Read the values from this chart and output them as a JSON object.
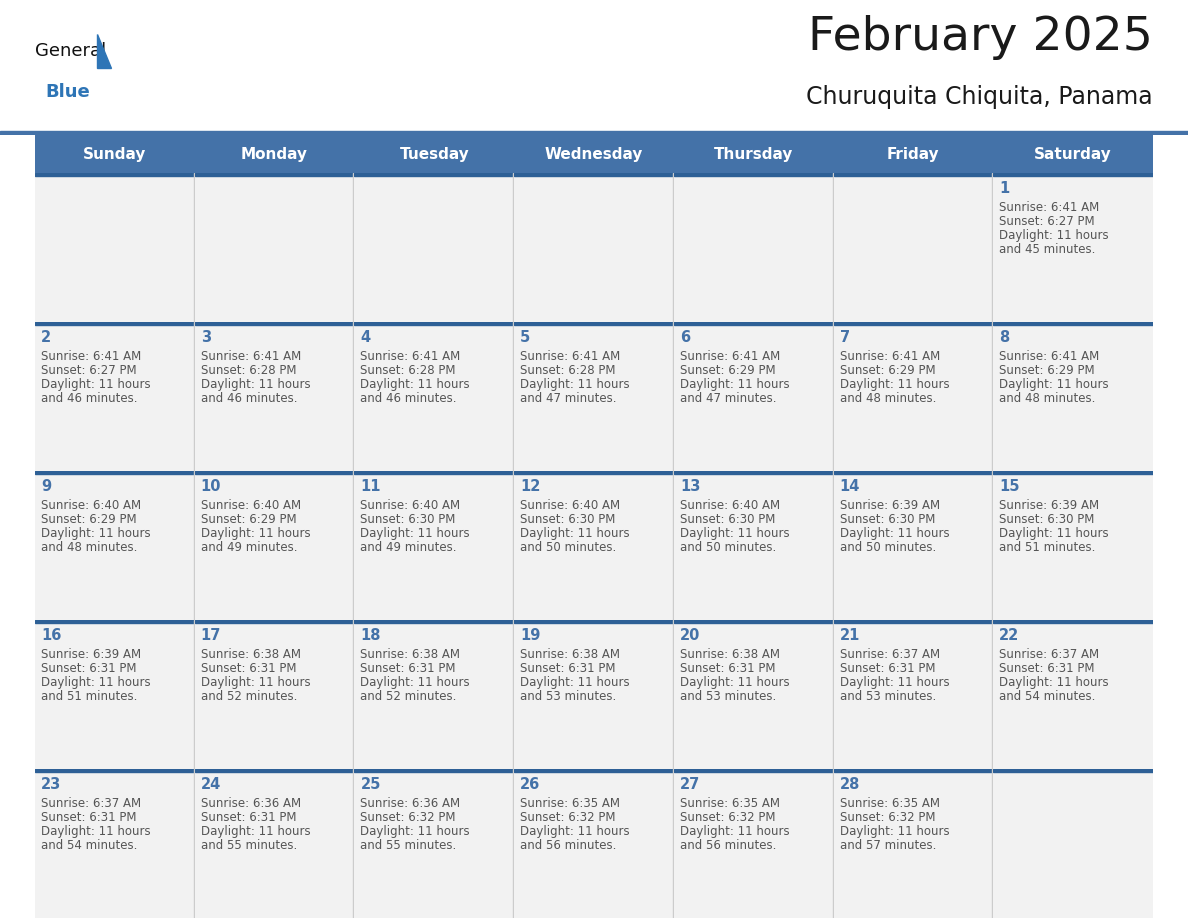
{
  "title": "February 2025",
  "subtitle": "Churuquita Chiquita, Panama",
  "header_bg": "#4472a8",
  "header_text_color": "#ffffff",
  "cell_bg": "#f2f2f2",
  "day_number_color": "#4472a8",
  "info_text_color": "#555555",
  "border_color": "#2e6096",
  "days_of_week": [
    "Sunday",
    "Monday",
    "Tuesday",
    "Wednesday",
    "Thursday",
    "Friday",
    "Saturday"
  ],
  "weeks": [
    [
      {
        "day": null,
        "sunrise": null,
        "sunset": null,
        "daylight": null
      },
      {
        "day": null,
        "sunrise": null,
        "sunset": null,
        "daylight": null
      },
      {
        "day": null,
        "sunrise": null,
        "sunset": null,
        "daylight": null
      },
      {
        "day": null,
        "sunrise": null,
        "sunset": null,
        "daylight": null
      },
      {
        "day": null,
        "sunrise": null,
        "sunset": null,
        "daylight": null
      },
      {
        "day": null,
        "sunrise": null,
        "sunset": null,
        "daylight": null
      },
      {
        "day": 1,
        "sunrise": "6:41 AM",
        "sunset": "6:27 PM",
        "daylight": "11 hours and 45 minutes."
      }
    ],
    [
      {
        "day": 2,
        "sunrise": "6:41 AM",
        "sunset": "6:27 PM",
        "daylight": "11 hours and 46 minutes."
      },
      {
        "day": 3,
        "sunrise": "6:41 AM",
        "sunset": "6:28 PM",
        "daylight": "11 hours and 46 minutes."
      },
      {
        "day": 4,
        "sunrise": "6:41 AM",
        "sunset": "6:28 PM",
        "daylight": "11 hours and 46 minutes."
      },
      {
        "day": 5,
        "sunrise": "6:41 AM",
        "sunset": "6:28 PM",
        "daylight": "11 hours and 47 minutes."
      },
      {
        "day": 6,
        "sunrise": "6:41 AM",
        "sunset": "6:29 PM",
        "daylight": "11 hours and 47 minutes."
      },
      {
        "day": 7,
        "sunrise": "6:41 AM",
        "sunset": "6:29 PM",
        "daylight": "11 hours and 48 minutes."
      },
      {
        "day": 8,
        "sunrise": "6:41 AM",
        "sunset": "6:29 PM",
        "daylight": "11 hours and 48 minutes."
      }
    ],
    [
      {
        "day": 9,
        "sunrise": "6:40 AM",
        "sunset": "6:29 PM",
        "daylight": "11 hours and 48 minutes."
      },
      {
        "day": 10,
        "sunrise": "6:40 AM",
        "sunset": "6:29 PM",
        "daylight": "11 hours and 49 minutes."
      },
      {
        "day": 11,
        "sunrise": "6:40 AM",
        "sunset": "6:30 PM",
        "daylight": "11 hours and 49 minutes."
      },
      {
        "day": 12,
        "sunrise": "6:40 AM",
        "sunset": "6:30 PM",
        "daylight": "11 hours and 50 minutes."
      },
      {
        "day": 13,
        "sunrise": "6:40 AM",
        "sunset": "6:30 PM",
        "daylight": "11 hours and 50 minutes."
      },
      {
        "day": 14,
        "sunrise": "6:39 AM",
        "sunset": "6:30 PM",
        "daylight": "11 hours and 50 minutes."
      },
      {
        "day": 15,
        "sunrise": "6:39 AM",
        "sunset": "6:30 PM",
        "daylight": "11 hours and 51 minutes."
      }
    ],
    [
      {
        "day": 16,
        "sunrise": "6:39 AM",
        "sunset": "6:31 PM",
        "daylight": "11 hours and 51 minutes."
      },
      {
        "day": 17,
        "sunrise": "6:38 AM",
        "sunset": "6:31 PM",
        "daylight": "11 hours and 52 minutes."
      },
      {
        "day": 18,
        "sunrise": "6:38 AM",
        "sunset": "6:31 PM",
        "daylight": "11 hours and 52 minutes."
      },
      {
        "day": 19,
        "sunrise": "6:38 AM",
        "sunset": "6:31 PM",
        "daylight": "11 hours and 53 minutes."
      },
      {
        "day": 20,
        "sunrise": "6:38 AM",
        "sunset": "6:31 PM",
        "daylight": "11 hours and 53 minutes."
      },
      {
        "day": 21,
        "sunrise": "6:37 AM",
        "sunset": "6:31 PM",
        "daylight": "11 hours and 53 minutes."
      },
      {
        "day": 22,
        "sunrise": "6:37 AM",
        "sunset": "6:31 PM",
        "daylight": "11 hours and 54 minutes."
      }
    ],
    [
      {
        "day": 23,
        "sunrise": "6:37 AM",
        "sunset": "6:31 PM",
        "daylight": "11 hours and 54 minutes."
      },
      {
        "day": 24,
        "sunrise": "6:36 AM",
        "sunset": "6:31 PM",
        "daylight": "11 hours and 55 minutes."
      },
      {
        "day": 25,
        "sunrise": "6:36 AM",
        "sunset": "6:32 PM",
        "daylight": "11 hours and 55 minutes."
      },
      {
        "day": 26,
        "sunrise": "6:35 AM",
        "sunset": "6:32 PM",
        "daylight": "11 hours and 56 minutes."
      },
      {
        "day": 27,
        "sunrise": "6:35 AM",
        "sunset": "6:32 PM",
        "daylight": "11 hours and 56 minutes."
      },
      {
        "day": 28,
        "sunrise": "6:35 AM",
        "sunset": "6:32 PM",
        "daylight": "11 hours and 57 minutes."
      },
      {
        "day": null,
        "sunrise": null,
        "sunset": null,
        "daylight": null
      }
    ]
  ],
  "logo_triangle_color": "#2e75b6",
  "fig_width": 11.88,
  "fig_height": 9.18,
  "dpi": 100
}
